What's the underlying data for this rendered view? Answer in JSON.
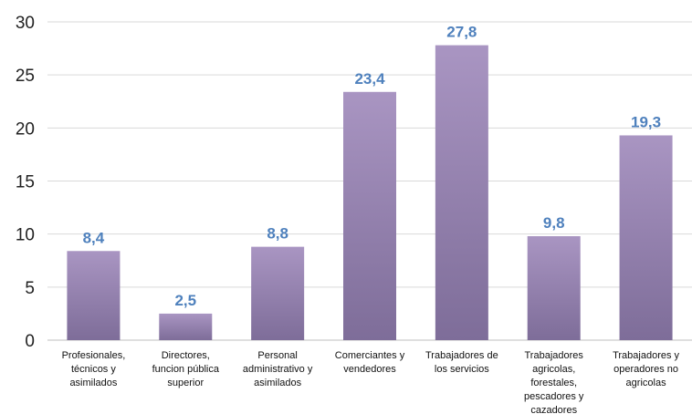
{
  "chart_data": {
    "type": "bar",
    "categories": [
      [
        "Profesionales,",
        "técnicos y",
        "asimilados"
      ],
      [
        "Directores,",
        "funcion pública",
        "superior"
      ],
      [
        "Personal",
        "administrativo y",
        "asimilados"
      ],
      [
        "Comerciantes y",
        "vendedores"
      ],
      [
        "Trabajadores de",
        "los servicios"
      ],
      [
        "Trabajadores",
        "agricolas,",
        "forestales,",
        "pescadores y",
        "cazadores"
      ],
      [
        "Trabajadores y",
        "operadores no",
        "agricolas"
      ]
    ],
    "values": [
      8.4,
      2.5,
      8.8,
      23.4,
      27.8,
      9.8,
      19.3
    ],
    "data_labels": [
      "8,4",
      "2,5",
      "8,8",
      "23,4",
      "27,8",
      "9,8",
      "19,3"
    ],
    "y_ticks": [
      "0",
      "5",
      "10",
      "15",
      "20",
      "25",
      "30"
    ],
    "ylim": [
      0,
      30
    ],
    "grid": true,
    "title": "",
    "xlabel": "",
    "ylabel": "",
    "colors": {
      "bar_light": "#a995c2",
      "bar_dark": "#7e6d99",
      "label": "#4f81bd",
      "grid": "#d9d9d9",
      "axis": "#bfbfbf"
    }
  }
}
